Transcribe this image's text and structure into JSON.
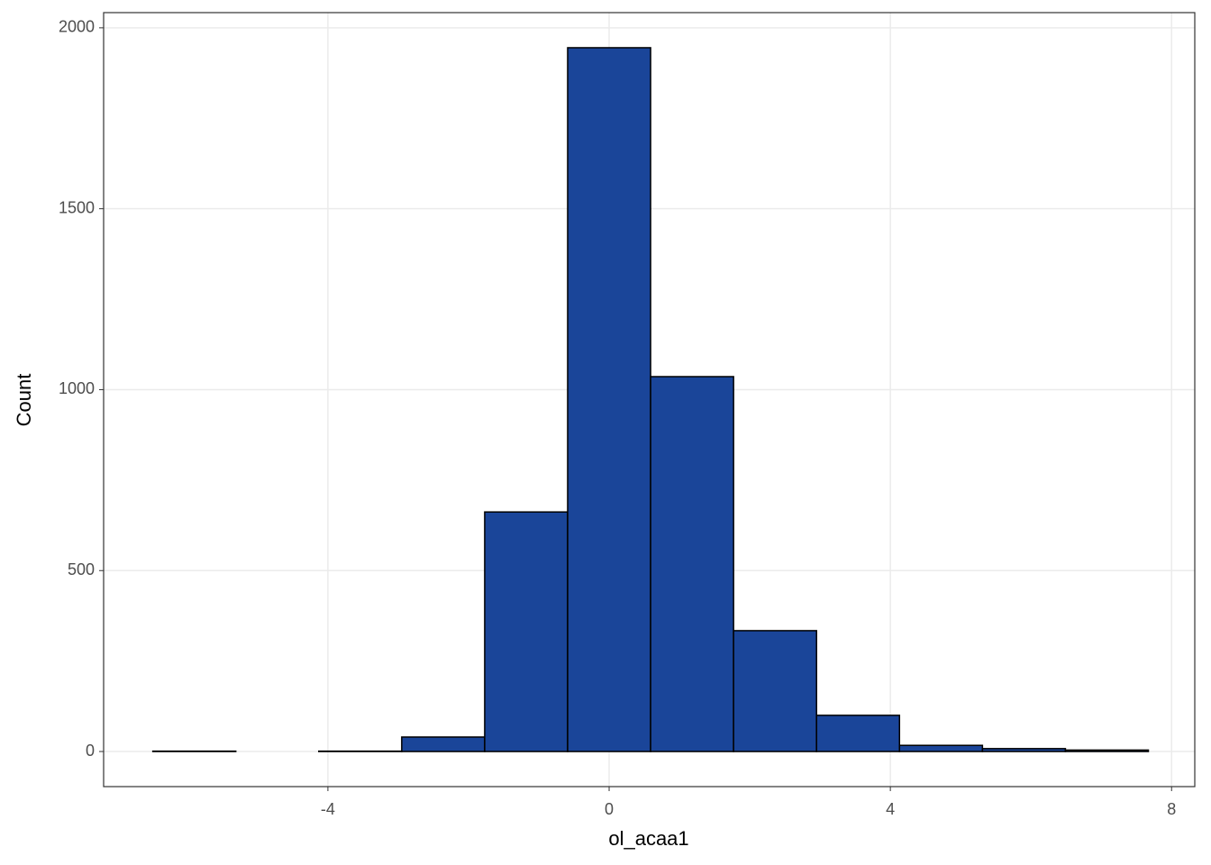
{
  "chart_data": {
    "type": "histogram",
    "x_label": "ol_acaa1",
    "y_label": "Count",
    "bins": [
      -6.49,
      -5.31,
      -4.13,
      -2.95,
      -1.77,
      -0.59,
      0.59,
      1.77,
      2.95,
      4.13,
      5.31,
      6.49,
      7.67
    ],
    "values": [
      1,
      0,
      1,
      40,
      662,
      1945,
      1036,
      334,
      100,
      17,
      8,
      4
    ],
    "color": "#1a4599",
    "edgecolor": "#000000",
    "xlim": [
      -7.19,
      8.33
    ],
    "xticks": [
      -4,
      0,
      4,
      8
    ],
    "ylim": [
      -97,
      2042
    ],
    "yticks": [
      0,
      500,
      1000,
      1500,
      2000
    ],
    "grid": true
  }
}
